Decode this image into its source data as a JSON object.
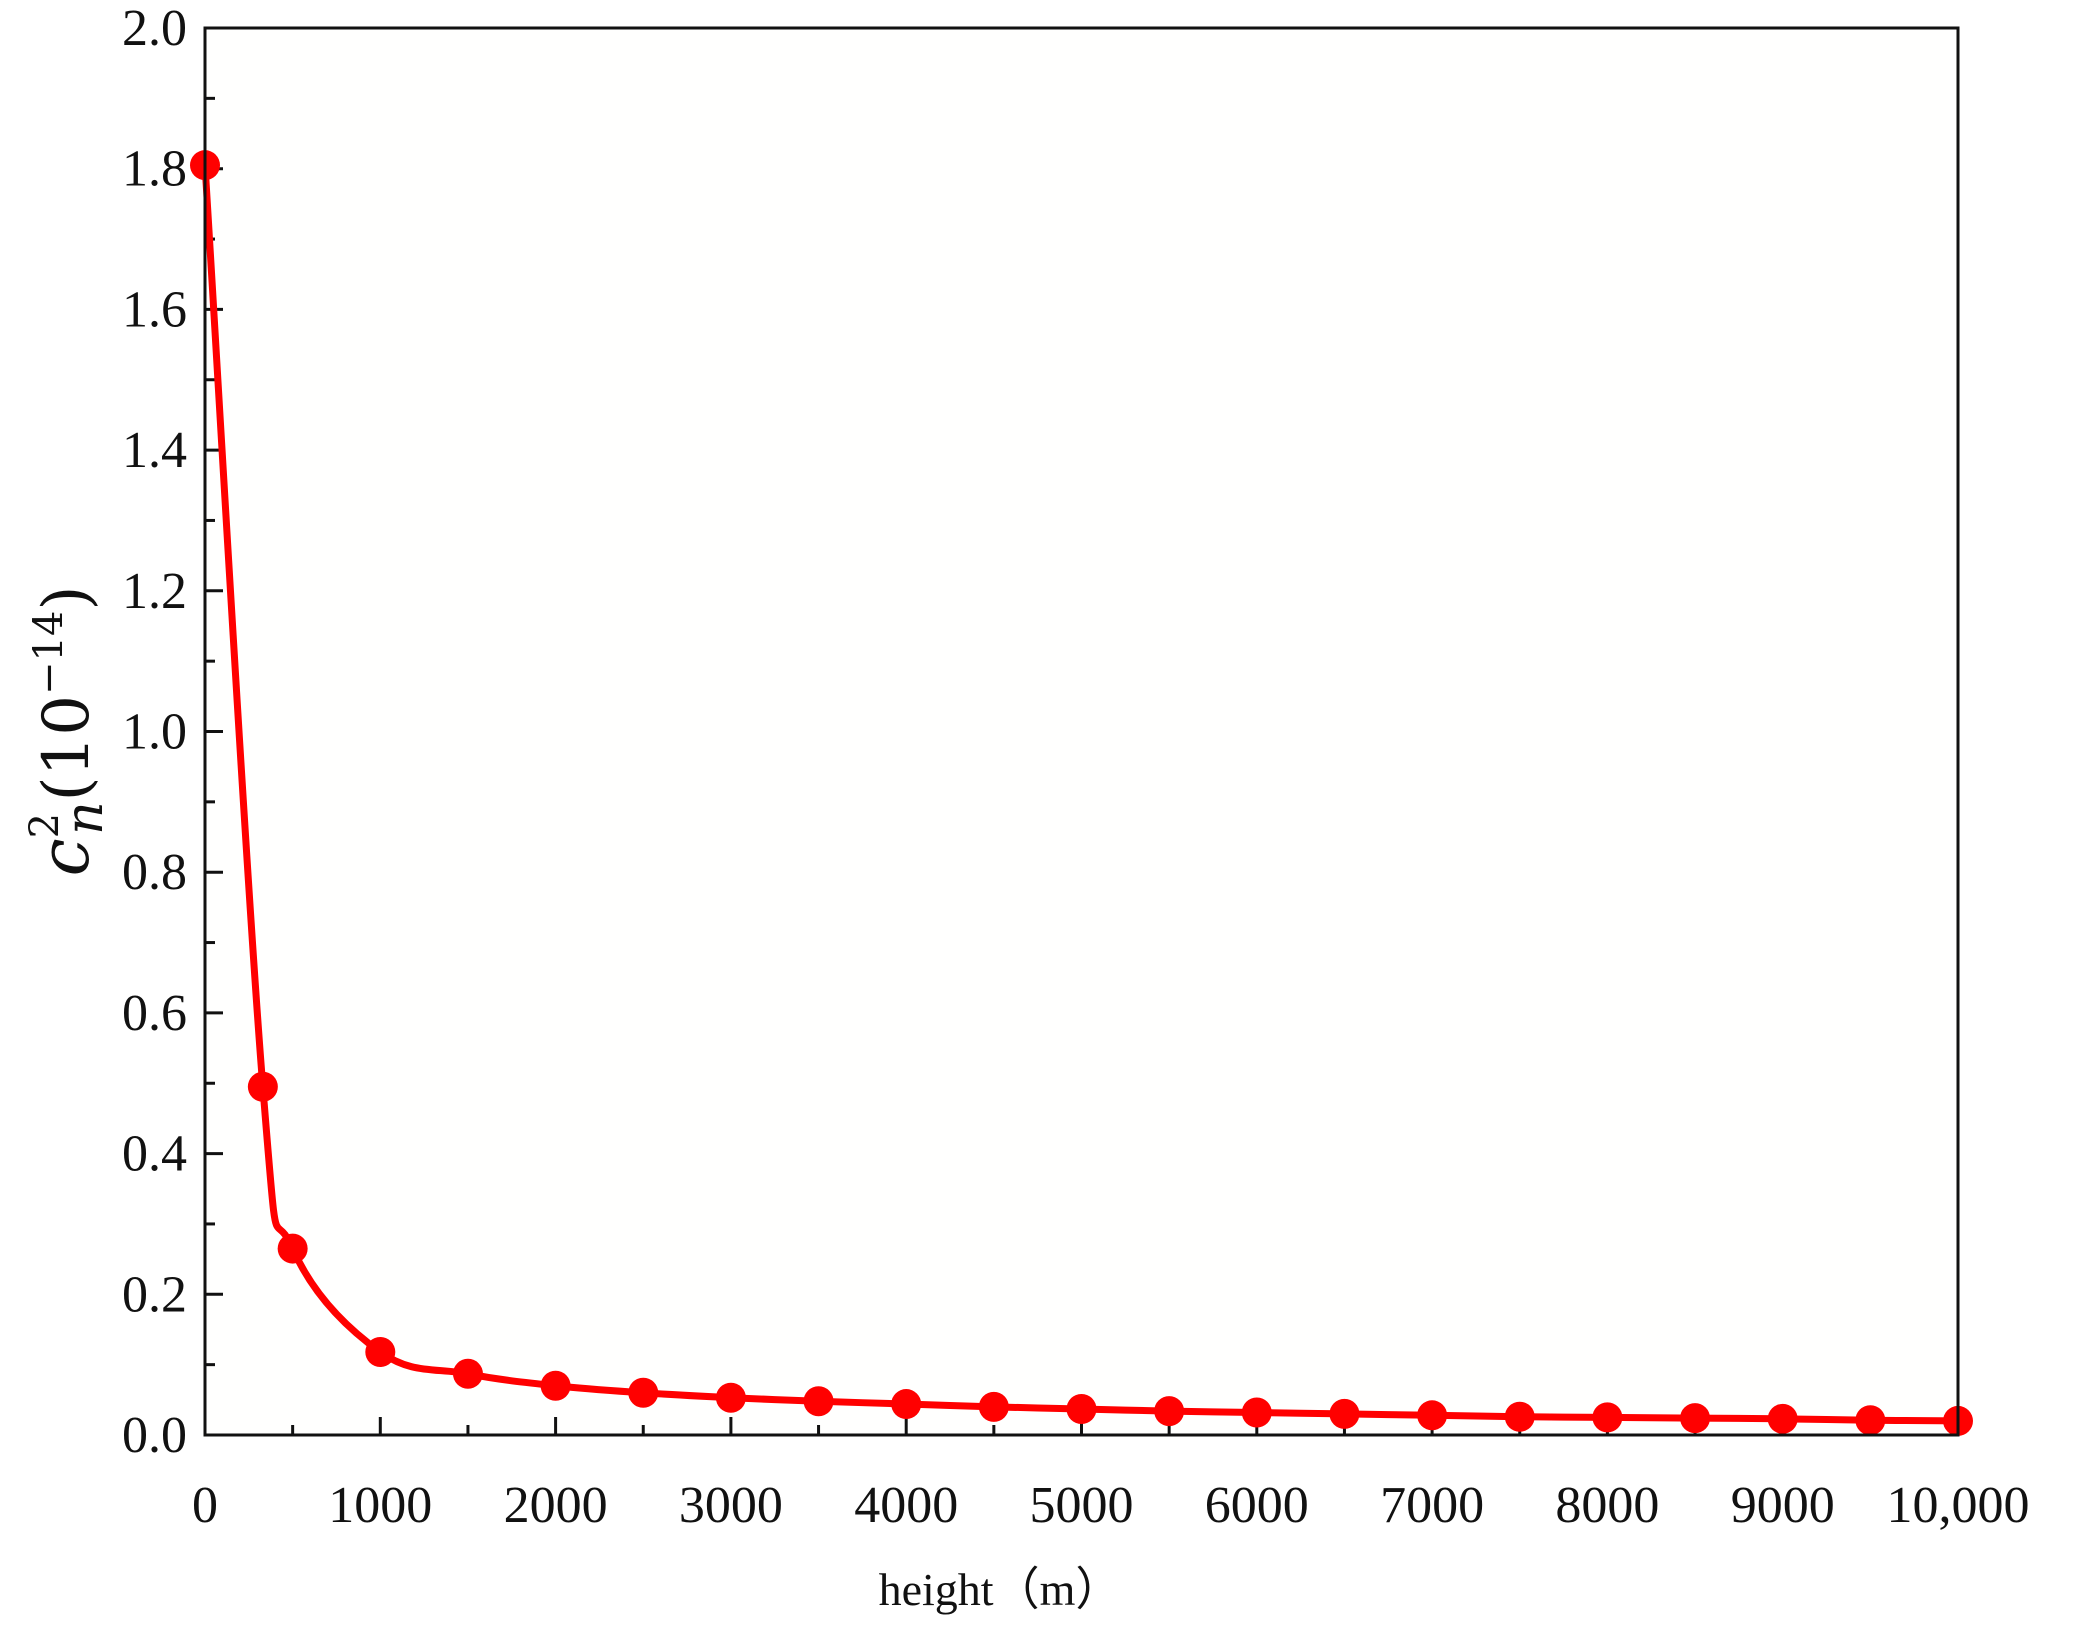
{
  "chart_data": {
    "type": "line",
    "title": "",
    "xlabel": "height（m）",
    "ylabel": {
      "symbol": "c",
      "superscript": "2",
      "subscript": "n",
      "factor_open": "(10",
      "factor_exponent": "−14",
      "factor_close": ")"
    },
    "xlim": [
      0,
      10000
    ],
    "ylim": [
      0,
      2.0
    ],
    "x_ticks": [
      0,
      1000,
      2000,
      3000,
      4000,
      5000,
      6000,
      7000,
      8000,
      9000,
      10000
    ],
    "x_tick_labels": [
      "0",
      "1000",
      "2000",
      "3000",
      "4000",
      "5000",
      "6000",
      "7000",
      "8000",
      "9000",
      "10,000"
    ],
    "y_ticks": [
      0,
      0.2,
      0.4,
      0.6,
      0.8,
      1.0,
      1.2,
      1.4,
      1.6,
      1.8,
      2.0
    ],
    "y_tick_labels": [
      "0.0",
      "0.2",
      "0.4",
      "0.6",
      "0.8",
      "1.0",
      "1.2",
      "1.4",
      "1.6",
      "1.8",
      "2.0"
    ],
    "grid": false,
    "colors": {
      "series": "#ff0000",
      "axes": "#111111",
      "plot_bg": "#fffffe"
    },
    "series": [
      {
        "marker": "circle",
        "x": [
          0,
          330,
          500,
          1000,
          1500,
          2000,
          2500,
          3000,
          3500,
          4000,
          4500,
          5000,
          5500,
          6000,
          6500,
          7000,
          7500,
          8000,
          8500,
          9000,
          9500,
          10000
        ],
        "y": [
          1.805,
          0.495,
          0.265,
          0.118,
          0.087,
          0.07,
          0.06,
          0.053,
          0.048,
          0.044,
          0.04,
          0.037,
          0.034,
          0.032,
          0.03,
          0.028,
          0.026,
          0.025,
          0.024,
          0.023,
          0.021,
          0.02
        ]
      }
    ]
  }
}
